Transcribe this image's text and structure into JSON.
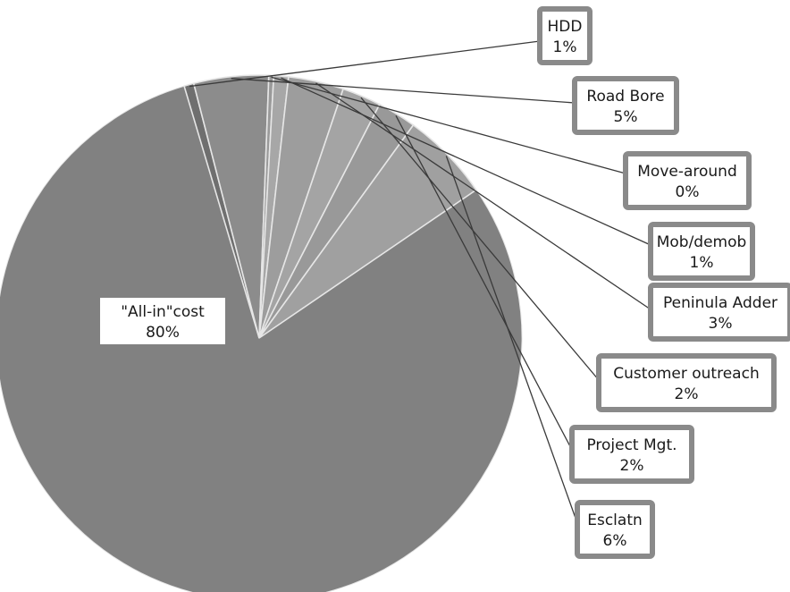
{
  "chart_data": {
    "type": "pie",
    "title": "",
    "slices": [
      {
        "name": "\"All-in\"cost",
        "label": "80%",
        "value": 80,
        "color": "#818181"
      },
      {
        "name": "HDD",
        "label": "1%",
        "value": 0.6,
        "color": "#6f6f6f"
      },
      {
        "name": "Road Bore",
        "label": "5%",
        "value": 4.6,
        "color": "#8c8c8c"
      },
      {
        "name": "Move-around",
        "label": "0%",
        "value": 0.3,
        "color": "#9a9a9a"
      },
      {
        "name": "Mob/demob",
        "label": "1%",
        "value": 0.9,
        "color": "#a7a7a7"
      },
      {
        "name": "Peninula Adder",
        "label": "3%",
        "value": 3.4,
        "color": "#9d9d9d"
      },
      {
        "name": "Customer outreach",
        "label": "2%",
        "value": 2.4,
        "color": "#a4a4a4"
      },
      {
        "name": "Project Mgt.",
        "label": "2%",
        "value": 2.4,
        "color": "#999999"
      },
      {
        "name": "Esclatn",
        "label": "6%",
        "value": 5.5,
        "color": "#a0a0a0"
      }
    ]
  }
}
